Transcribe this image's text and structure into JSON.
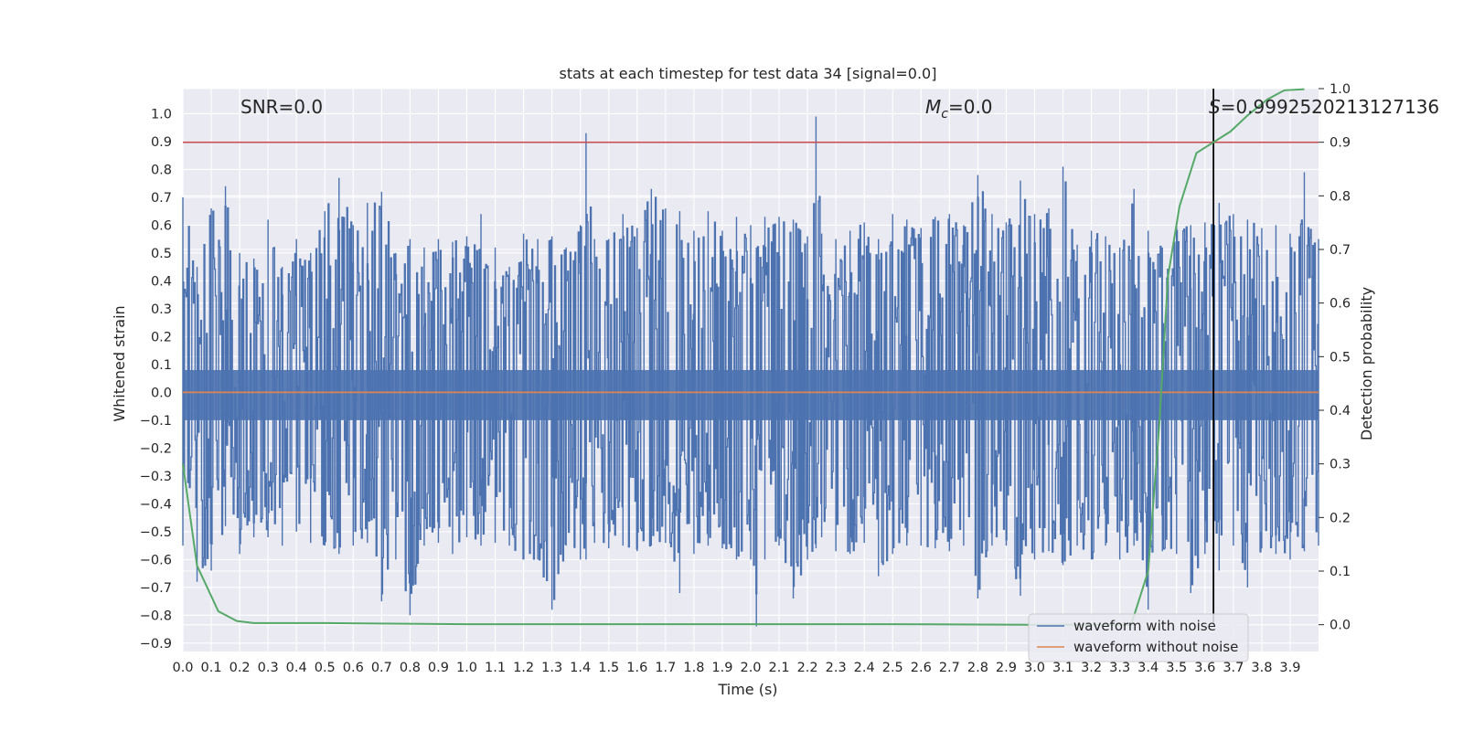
{
  "chart_data": {
    "type": "line",
    "title": "stats at each timestep for test data 34 [signal=0.0]",
    "xlabel": "Time (s)",
    "ylabel": "Whitened strain",
    "y2label": "Detection probability",
    "xlim": [
      0.0,
      4.0
    ],
    "ylim": [
      -0.93,
      1.09
    ],
    "y2lim": [
      -0.05,
      1.0
    ],
    "xticks": [
      0.0,
      0.1,
      0.2,
      0.3,
      0.4,
      0.5,
      0.6,
      0.7,
      0.8,
      0.9,
      1.0,
      1.1,
      1.2,
      1.3,
      1.4,
      1.5,
      1.6,
      1.7,
      1.8,
      1.9,
      2.0,
      2.1,
      2.2,
      2.3,
      2.4,
      2.5,
      2.6,
      2.7,
      2.8,
      2.9,
      3.0,
      3.1,
      3.2,
      3.3,
      3.4,
      3.5,
      3.6,
      3.7,
      3.8,
      3.9
    ],
    "yticks": [
      -0.9,
      -0.8,
      -0.7,
      -0.6,
      -0.5,
      -0.4,
      -0.3,
      -0.2,
      -0.1,
      0.0,
      0.1,
      0.2,
      0.3,
      0.4,
      0.5,
      0.6,
      0.7,
      0.8,
      0.9,
      1.0
    ],
    "y2ticks": [
      0.0,
      0.1,
      0.2,
      0.3,
      0.4,
      0.5,
      0.6,
      0.7,
      0.8,
      0.9,
      1.0
    ],
    "annotations": {
      "snr": "SNR=0.0",
      "mc_symbol": "M",
      "mc_sub": "c",
      "mc_value": "=0.0",
      "s_symbol": "S",
      "s_value": "=0.9992520213127136"
    },
    "threshold_y": 0.9,
    "marker_x": 3.63,
    "noise_envelope": {
      "t": [
        0.0,
        0.05,
        0.1,
        0.15,
        0.2,
        0.25,
        0.3,
        0.35,
        0.4,
        0.45,
        0.5,
        0.55,
        0.6,
        0.65,
        0.7,
        0.75,
        0.8,
        0.85,
        0.9,
        0.95,
        1.0,
        1.05,
        1.1,
        1.15,
        1.2,
        1.25,
        1.3,
        1.35,
        1.4,
        1.42,
        1.45,
        1.5,
        1.55,
        1.6,
        1.65,
        1.7,
        1.75,
        1.8,
        1.85,
        1.9,
        1.95,
        2.0,
        2.02,
        2.05,
        2.1,
        2.15,
        2.2,
        2.23,
        2.25,
        2.3,
        2.35,
        2.4,
        2.45,
        2.5,
        2.55,
        2.6,
        2.65,
        2.7,
        2.75,
        2.8,
        2.85,
        2.9,
        2.95,
        3.0,
        3.05,
        3.1,
        3.15,
        3.2,
        3.25,
        3.3,
        3.35,
        3.4,
        3.45,
        3.5,
        3.55,
        3.6,
        3.65,
        3.7,
        3.75,
        3.8,
        3.85,
        3.9,
        3.95,
        4.0
      ],
      "max": [
        0.7,
        0.45,
        0.66,
        0.74,
        0.5,
        0.48,
        0.62,
        0.45,
        0.55,
        0.5,
        0.65,
        0.77,
        0.6,
        0.68,
        0.72,
        0.5,
        0.55,
        0.52,
        0.55,
        0.54,
        0.56,
        0.64,
        0.52,
        0.45,
        0.57,
        0.55,
        0.56,
        0.52,
        0.6,
        0.93,
        0.55,
        0.55,
        0.64,
        0.59,
        0.73,
        0.66,
        0.65,
        0.58,
        0.65,
        0.58,
        0.63,
        0.6,
        0.52,
        0.63,
        0.63,
        0.62,
        0.56,
        0.99,
        0.57,
        0.55,
        0.58,
        0.61,
        0.55,
        0.64,
        0.62,
        0.59,
        0.63,
        0.64,
        0.6,
        0.78,
        0.64,
        0.61,
        0.76,
        0.64,
        0.66,
        0.81,
        0.53,
        0.58,
        0.56,
        0.52,
        0.73,
        0.58,
        0.52,
        0.61,
        0.6,
        0.61,
        0.68,
        0.64,
        0.62,
        0.59,
        0.6,
        0.57,
        0.79,
        0.55
      ],
      "min": [
        -0.55,
        -0.68,
        -0.64,
        -0.48,
        -0.58,
        -0.52,
        -0.52,
        -0.55,
        -0.5,
        -0.54,
        -0.55,
        -0.58,
        -0.55,
        -0.54,
        -0.75,
        -0.6,
        -0.8,
        -0.55,
        -0.54,
        -0.58,
        -0.52,
        -0.55,
        -0.54,
        -0.55,
        -0.6,
        -0.6,
        -0.78,
        -0.55,
        -0.6,
        -0.6,
        -0.54,
        -0.56,
        -0.55,
        -0.57,
        -0.55,
        -0.54,
        -0.72,
        -0.58,
        -0.55,
        -0.56,
        -0.6,
        -0.6,
        -0.84,
        -0.6,
        -0.55,
        -0.74,
        -0.6,
        -0.56,
        -0.52,
        -0.57,
        -0.58,
        -0.54,
        -0.66,
        -0.58,
        -0.55,
        -0.55,
        -0.56,
        -0.57,
        -0.55,
        -0.74,
        -0.55,
        -0.55,
        -0.73,
        -0.6,
        -0.57,
        -0.62,
        -0.55,
        -0.6,
        -0.55,
        -0.6,
        -0.55,
        -0.78,
        -0.57,
        -0.58,
        -0.72,
        -0.58,
        -0.64,
        -0.55,
        -0.7,
        -0.56,
        -0.58,
        -0.6,
        -0.57,
        -0.55
      ]
    },
    "series": [
      {
        "name": "waveform with noise",
        "color": "#4c72b0",
        "axis": "left",
        "kind": "noise"
      },
      {
        "name": "waveform without noise",
        "color": "#dd8452",
        "axis": "left",
        "x": [
          0.0,
          4.0
        ],
        "y": [
          0.0,
          0.0
        ]
      },
      {
        "name": "detection probability",
        "color": "#55a868",
        "axis": "right",
        "x": [
          0.0,
          0.05,
          0.125,
          0.19,
          0.25,
          0.5,
          1.0,
          1.5,
          2.0,
          2.5,
          3.0,
          3.25,
          3.34,
          3.4,
          3.44,
          3.47,
          3.51,
          3.57,
          3.63,
          3.69,
          3.75,
          3.82,
          3.88,
          3.95
        ],
        "y": [
          0.3,
          0.11,
          0.025,
          0.007,
          0.003,
          0.003,
          0.001,
          0.001,
          0.001,
          0.001,
          0.0,
          0.0,
          0.0,
          0.1,
          0.38,
          0.65,
          0.78,
          0.88,
          0.9,
          0.92,
          0.95,
          0.98,
          0.997,
          0.999
        ]
      }
    ],
    "legend": {
      "placement": "lower-right",
      "entries": [
        "waveform with noise",
        "waveform without noise"
      ]
    },
    "colors": {
      "background": "#eaeaf2",
      "grid": "#ffffff",
      "threshold": "#c44e52",
      "marker": "#000000"
    }
  }
}
